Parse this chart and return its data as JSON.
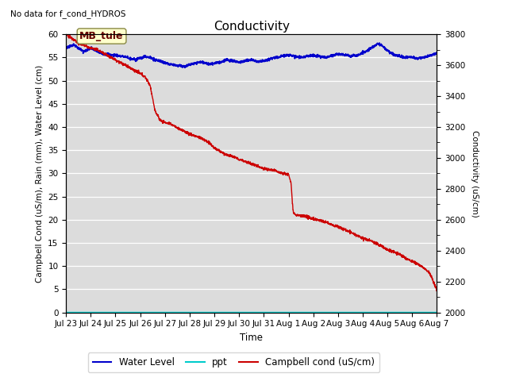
{
  "title": "Conductivity",
  "top_left_text": "No data for f_cond_HYDROS",
  "xlabel": "Time",
  "ylabel_left": "Campbell Cond (uS/m), Rain (mm), Water Level (cm)",
  "ylabel_right": "Conductivity (uS/cm)",
  "ylim_left": [
    0,
    60
  ],
  "ylim_right": [
    2000,
    3800
  ],
  "yticks_left": [
    0,
    5,
    10,
    15,
    20,
    25,
    30,
    35,
    40,
    45,
    50,
    55,
    60
  ],
  "yticks_right": [
    2000,
    2200,
    2400,
    2600,
    2800,
    3000,
    3200,
    3400,
    3600,
    3800
  ],
  "xtick_labels": [
    "Jul 23",
    "Jul 24",
    "Jul 25",
    "Jul 26",
    "Jul 27",
    "Jul 28",
    "Jul 29",
    "Jul 30",
    "Jul 31",
    "Aug 1",
    "Aug 2",
    "Aug 3",
    "Aug 4",
    "Aug 5",
    "Aug 6",
    "Aug 7"
  ],
  "background_color": "#e8e8e8",
  "plot_bg_color": "#dcdcdc",
  "box_label": "MB_tule",
  "box_color": "#ffffcc",
  "box_edge_color": "#888844",
  "water_level_color": "#0000cc",
  "ppt_color": "#00cccc",
  "campbell_color": "#cc0000",
  "legend_entries": [
    "Water Level",
    "ppt",
    "Campbell cond (uS/cm)"
  ],
  "figsize": [
    6.4,
    4.8
  ],
  "dpi": 100
}
